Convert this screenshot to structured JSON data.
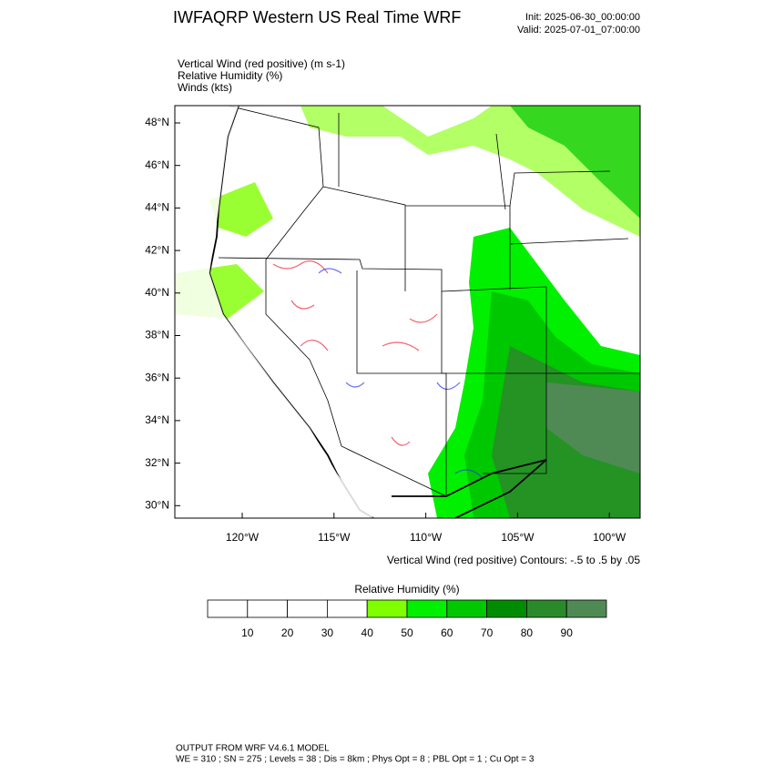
{
  "header": {
    "title": "IWFAQRP Western US Real Time WRF",
    "init": "Init: 2025-06-30_00:00:00",
    "valid": "Valid: 2025-07-01_07:00:00"
  },
  "fields": [
    "Vertical Wind (red positive)   (m s-1)",
    "Relative Humidity   (%)",
    "Winds   (kts)"
  ],
  "map": {
    "lat_labels": [
      "48°N",
      "46°N",
      "44°N",
      "42°N",
      "40°N",
      "38°N",
      "36°N",
      "34°N",
      "32°N",
      "30°N"
    ],
    "lon_labels": [
      "120°W",
      "115°W",
      "110°W",
      "105°W",
      "100°W"
    ],
    "contour_note": "Vertical Wind (red positive) Contours: -.5 to .5 by .05"
  },
  "colorbar": {
    "title": "Relative Humidity  (%)",
    "labels": [
      "10",
      "20",
      "30",
      "40",
      "50",
      "60",
      "70",
      "80",
      "90"
    ],
    "colors": [
      "#ffffff",
      "#ffffff",
      "#ffffff",
      "#ffffff",
      "#7fff00",
      "#00f000",
      "#00c800",
      "#008c00",
      "#2a8a2a",
      "#4f8a55"
    ]
  },
  "footer": {
    "line1": "OUTPUT FROM WRF V4.6.1 MODEL",
    "line2": "WE = 310 ; SN = 275 ; Levels = 38 ; Dis = 8km ; Phys Opt = 8 ; PBL Opt = 1 ; Cu Opt = 3"
  }
}
